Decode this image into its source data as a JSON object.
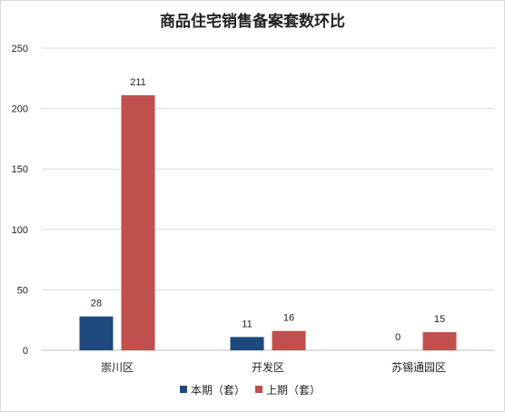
{
  "chart_data": {
    "type": "bar",
    "title": "商品住宅销售备案套数环比",
    "categories": [
      "崇川区",
      "开发区",
      "苏锡通园区"
    ],
    "series": [
      {
        "name": "本期（套）",
        "color": "#1f497d",
        "values": [
          28,
          11,
          0
        ]
      },
      {
        "name": "上期（套）",
        "color": "#c0504d",
        "values": [
          211,
          16,
          15
        ]
      }
    ],
    "ylim": [
      0,
      250
    ],
    "yticks": [
      0,
      50,
      100,
      150,
      200,
      250
    ],
    "grid": true,
    "legend_position": "bottom"
  }
}
